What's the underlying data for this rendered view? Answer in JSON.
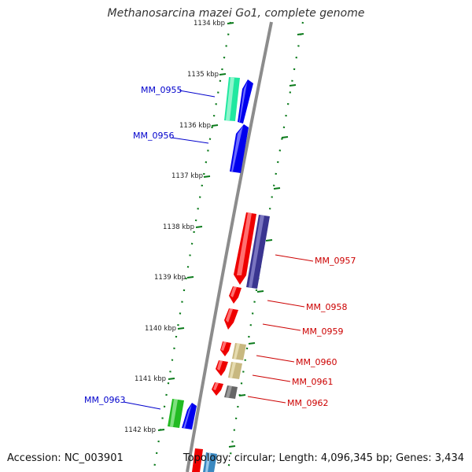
{
  "title": "Methanosarcina mazei Go1, complete genome",
  "footer": {
    "accession": "Accession: NC_003901",
    "topology": "Topology: circular; Length: 4,096,345 bp; Genes: 3,434"
  },
  "colors": {
    "forward_label": "#0000cc",
    "reverse_label": "#cc0000",
    "tick": "#0a7a1a",
    "backbone": "#8c8c8c"
  },
  "ticks": [
    "1134 kbp",
    "1135 kbp",
    "1136 kbp",
    "1137 kbp",
    "1138 kbp",
    "1139 kbp",
    "1140 kbp",
    "1141 kbp",
    "1142 kbp"
  ],
  "genes": [
    {
      "id": "MM_0955",
      "strand": "+",
      "label_color": "blue"
    },
    {
      "id": "MM_0956",
      "strand": "+",
      "label_color": "blue"
    },
    {
      "id": "MM_0957",
      "strand": "-",
      "label_color": "red"
    },
    {
      "id": "MM_0958",
      "strand": "-",
      "label_color": "red"
    },
    {
      "id": "MM_0959",
      "strand": "-",
      "label_color": "red"
    },
    {
      "id": "MM_0960",
      "strand": "-",
      "label_color": "red"
    },
    {
      "id": "MM_0961",
      "strand": "-",
      "label_color": "red"
    },
    {
      "id": "MM_0962",
      "strand": "-",
      "label_color": "red"
    },
    {
      "id": "MM_0963",
      "strand": "+",
      "label_color": "blue"
    }
  ]
}
